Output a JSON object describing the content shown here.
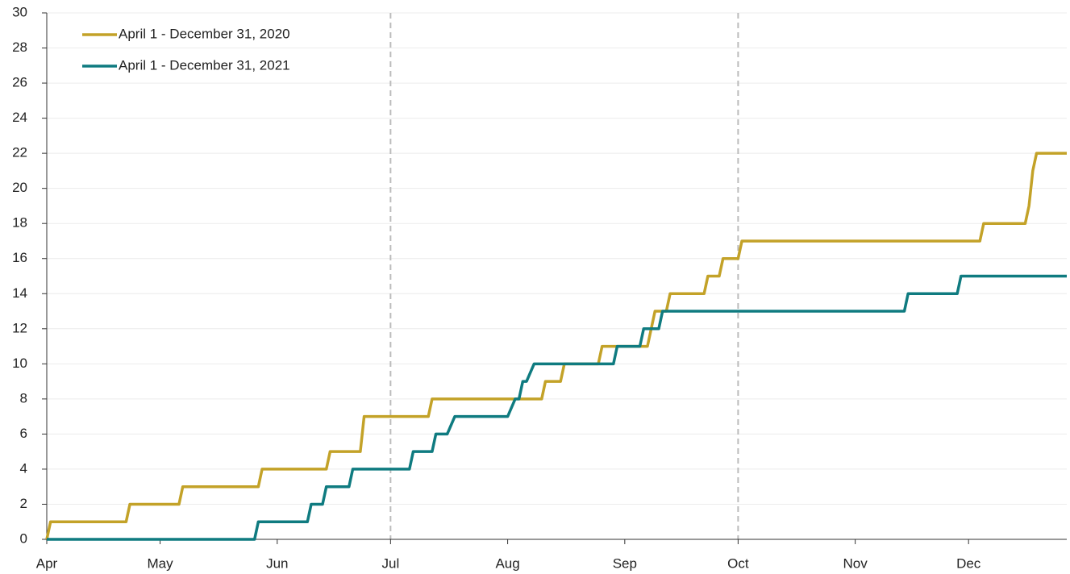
{
  "chart_data": {
    "type": "line",
    "xlim": [
      0,
      270
    ],
    "xticks": [
      {
        "value": 0,
        "label": "Apr"
      },
      {
        "value": 30,
        "label": "May"
      },
      {
        "value": 61,
        "label": "Jun"
      },
      {
        "value": 91,
        "label": "Jul"
      },
      {
        "value": 122,
        "label": "Aug"
      },
      {
        "value": 153,
        "label": "Sep"
      },
      {
        "value": 183,
        "label": "Oct"
      },
      {
        "value": 214,
        "label": "Nov"
      },
      {
        "value": 244,
        "label": "Dec"
      }
    ],
    "ylim": [
      0,
      30
    ],
    "yticks": [
      0,
      2,
      4,
      6,
      8,
      10,
      12,
      14,
      16,
      18,
      20,
      22,
      24,
      26,
      28,
      30
    ],
    "grid": true,
    "vlines": [
      91,
      183
    ],
    "legend": "upper left",
    "series": [
      {
        "name": "April 1 - December 31, 2020",
        "color": "#c3a228",
        "x": [
          0,
          1,
          21,
          22,
          35,
          36,
          56,
          57,
          74,
          75,
          83,
          84,
          101,
          102,
          131,
          132,
          136,
          137,
          146,
          147,
          159,
          161,
          164,
          165,
          174,
          175,
          178,
          179,
          183,
          184,
          247,
          248,
          259,
          260,
          261,
          262,
          270
        ],
        "values": [
          0,
          1,
          1,
          2,
          2,
          3,
          3,
          4,
          4,
          5,
          5,
          7,
          7,
          8,
          8,
          9,
          9,
          10,
          10,
          11,
          11,
          13,
          13,
          14,
          14,
          15,
          15,
          16,
          16,
          17,
          17,
          18,
          18,
          19,
          21,
          22,
          22
        ]
      },
      {
        "name": "April 1 - December 31, 2021",
        "color": "#0f7b80",
        "x": [
          0,
          55,
          56,
          69,
          70,
          73,
          74,
          80,
          81,
          96,
          97,
          102,
          103,
          106,
          108,
          122,
          124,
          125,
          126,
          127,
          129,
          150,
          151,
          157,
          158,
          162,
          163,
          227,
          228,
          241,
          242,
          270
        ],
        "values": [
          0,
          0,
          1,
          1,
          2,
          2,
          3,
          3,
          4,
          4,
          5,
          5,
          6,
          6,
          7,
          7,
          8,
          8,
          9,
          9,
          10,
          10,
          11,
          11,
          12,
          12,
          13,
          13,
          14,
          14,
          15,
          15
        ]
      }
    ]
  }
}
